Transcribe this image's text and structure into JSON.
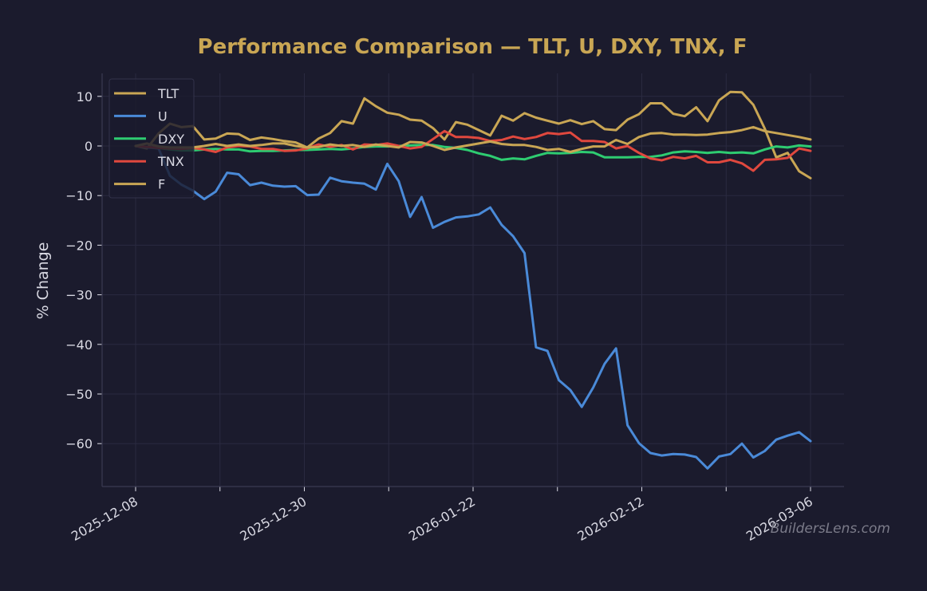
{
  "chart_data": {
    "type": "line",
    "title": "Performance Comparison — TLT, U, DXY, TNX, F",
    "xlabel": "",
    "ylabel": "% Change",
    "ylim": [
      -68,
      15
    ],
    "y_ticks": [
      10,
      0,
      -10,
      -20,
      -30,
      -40,
      -50,
      -60
    ],
    "x_tick_labels": [
      "2025-12-08",
      "2025-12-30",
      "2026-01-22",
      "2026-02-12",
      "2026-03-06"
    ],
    "grid": true,
    "legend_position": "top-left",
    "watermark": "BuildersLens.com",
    "colors": {
      "background": "#1b1b2d",
      "title": "#c9a654",
      "grid": "#2a2a40",
      "spine": "#3a3a52"
    },
    "series": [
      {
        "name": "TLT",
        "color": "#c9a654",
        "values": [
          0.0,
          -0.5,
          2.5,
          4.5,
          3.8,
          4.0,
          1.3,
          1.5,
          2.5,
          2.4,
          1.2,
          1.7,
          1.4,
          1.0,
          0.7,
          -0.3,
          1.5,
          2.6,
          5.0,
          4.5,
          9.6,
          8.0,
          6.7,
          6.3,
          5.3,
          5.1,
          3.6,
          1.3,
          4.8,
          4.3,
          3.2,
          2.1,
          6.1,
          5.1,
          6.6,
          5.7,
          5.1,
          4.5,
          5.2,
          4.4,
          5.0,
          3.4,
          3.2,
          5.3,
          6.4,
          8.6,
          8.6,
          6.5,
          6.0,
          7.8,
          5.0,
          9.2,
          10.9,
          10.8,
          8.3,
          3.5,
          -2.3,
          -1.4,
          -5.1,
          -6.5
        ]
      },
      {
        "name": "U",
        "color": "#4a8ad8",
        "values": [
          0.0,
          -0.3,
          -0.5,
          -6.0,
          -7.8,
          -9.0,
          -10.7,
          -9.2,
          -5.4,
          -5.7,
          -7.9,
          -7.4,
          -8.0,
          -8.2,
          -8.1,
          -9.9,
          -9.8,
          -6.4,
          -7.1,
          -7.4,
          -7.6,
          -8.8,
          -3.6,
          -7.1,
          -14.3,
          -10.3,
          -16.5,
          -15.3,
          -14.4,
          -14.2,
          -13.8,
          -12.4,
          -15.9,
          -18.2,
          -21.6,
          -40.6,
          -41.3,
          -47.2,
          -49.2,
          -52.6,
          -48.7,
          -43.9,
          -40.8,
          -56.3,
          -59.9,
          -61.9,
          -62.4,
          -62.1,
          -62.2,
          -62.7,
          -65.0,
          -62.6,
          -62.1,
          -60.0,
          -62.8,
          -61.5,
          -59.2,
          -58.4,
          -57.7,
          -59.5
        ]
      },
      {
        "name": "DXY",
        "color": "#2ecc71",
        "values": [
          0.0,
          -0.2,
          -0.4,
          -0.7,
          -0.9,
          -0.9,
          -0.7,
          -0.6,
          -0.7,
          -0.7,
          -1.1,
          -1.0,
          -1.0,
          -0.9,
          -0.8,
          -0.8,
          -0.7,
          -0.6,
          -0.7,
          -0.5,
          -0.2,
          -0.1,
          -0.1,
          0.0,
          0.1,
          0.2,
          0.2,
          -0.2,
          -0.4,
          -0.8,
          -1.5,
          -2.0,
          -2.8,
          -2.5,
          -2.7,
          -2.0,
          -1.4,
          -1.5,
          -1.4,
          -1.2,
          -1.3,
          -2.3,
          -2.3,
          -2.3,
          -2.2,
          -2.2,
          -1.9,
          -1.3,
          -1.1,
          -1.2,
          -1.4,
          -1.2,
          -1.4,
          -1.3,
          -1.5,
          -0.7,
          -0.1,
          -0.3,
          0.1,
          -0.1
        ]
      },
      {
        "name": "TNX",
        "color": "#e0483e",
        "values": [
          0.0,
          -0.2,
          -0.4,
          -0.5,
          -0.6,
          -0.4,
          -0.7,
          -1.2,
          -0.3,
          0.0,
          -0.1,
          -0.6,
          -0.6,
          -1.0,
          -0.9,
          -0.5,
          0.3,
          -0.2,
          0.2,
          -0.7,
          0.3,
          0.2,
          0.5,
          0.0,
          -0.5,
          -0.2,
          1.4,
          3.0,
          1.8,
          1.8,
          1.6,
          1.0,
          1.2,
          1.9,
          1.4,
          1.8,
          2.6,
          2.4,
          2.7,
          1.0,
          1.0,
          0.8,
          -0.5,
          0.0,
          -1.4,
          -2.5,
          -2.9,
          -2.2,
          -2.5,
          -2.0,
          -3.3,
          -3.3,
          -2.8,
          -3.5,
          -5.0,
          -2.8,
          -2.7,
          -2.4,
          -0.5,
          -1.0
        ]
      },
      {
        "name": "F",
        "color": "#c9a654",
        "values": [
          0.0,
          0.5,
          -0.1,
          -0.3,
          -0.3,
          -0.3,
          0.0,
          0.4,
          0.0,
          0.3,
          0.0,
          0.2,
          0.5,
          0.5,
          0.0,
          -0.3,
          -0.2,
          0.3,
          0.0,
          0.2,
          -0.2,
          0.3,
          0.0,
          -0.3,
          0.8,
          0.7,
          0.0,
          -0.8,
          -0.3,
          0.1,
          0.5,
          0.9,
          0.4,
          0.2,
          0.2,
          -0.2,
          -0.8,
          -0.6,
          -1.2,
          -0.6,
          -0.1,
          -0.1,
          1.2,
          0.4,
          1.8,
          2.5,
          2.6,
          2.3,
          2.3,
          2.2,
          2.3,
          2.6,
          2.8,
          3.2,
          3.8,
          3.0,
          2.6,
          2.2,
          1.8,
          1.3
        ]
      }
    ]
  }
}
